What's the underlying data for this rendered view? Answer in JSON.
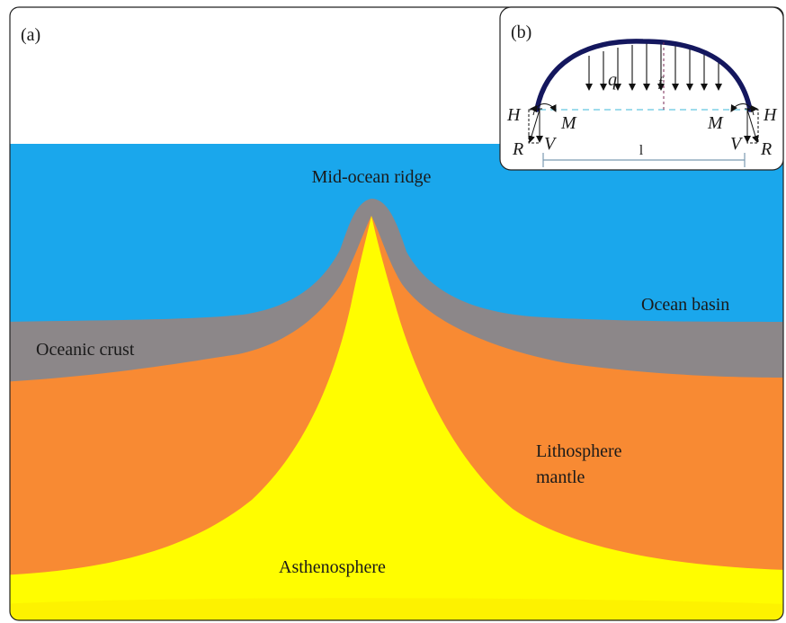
{
  "panel_a": {
    "tag": "(a)",
    "labels": {
      "ridge": "Mid-ocean ridge",
      "basin": "Ocean basin",
      "crust": "Oceanic crust",
      "litho_line1": "Lithosphere",
      "litho_line2": "mantle",
      "astheno": "Asthenosphere"
    },
    "colors": {
      "ocean": "#1aa7ec",
      "crust": "#8c8789",
      "mantle": "#f88a33",
      "asthenosphere": "#fffd00",
      "asthenosphere_base": "#fbe400"
    }
  },
  "panel_b": {
    "tag": "(b)",
    "symbols": {
      "load": "q",
      "height": "f",
      "span": "l",
      "horizontal_left": "H",
      "horizontal_right": "H",
      "moment_left": "M",
      "moment_right": "M",
      "vertical_left": "V",
      "vertical_right": "V",
      "resultant_left": "R",
      "resultant_right": "R"
    },
    "colors": {
      "arch": "#14175e",
      "chord": "#7fd0e6",
      "dimension": "#7a9ab0",
      "markers": "#7a2a55"
    }
  }
}
